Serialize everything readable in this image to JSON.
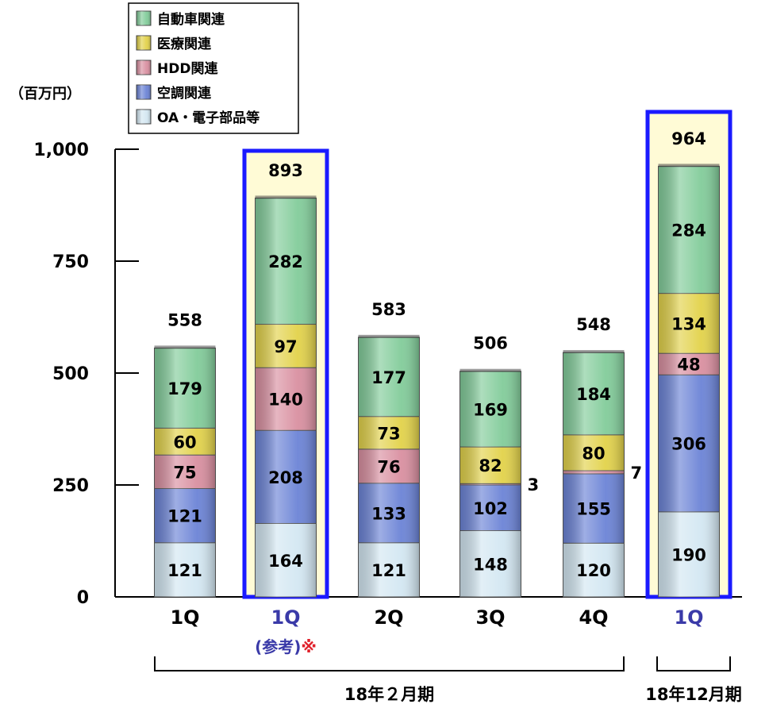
{
  "chart_data": {
    "type": "bar",
    "stacked": true,
    "unit_label": "（百万円）",
    "ylim": [
      0,
      1000
    ],
    "y_ticks": [
      {
        "value": 0,
        "label": "0"
      },
      {
        "value": 250,
        "label": "250"
      },
      {
        "value": 500,
        "label": "500"
      },
      {
        "value": 750,
        "label": "750"
      },
      {
        "value": 1000,
        "label": "1,000"
      }
    ],
    "categories": [
      "1Q",
      "1Q",
      "2Q",
      "3Q",
      "4Q",
      "1Q"
    ],
    "category_notes": [
      "",
      "(参考)",
      "",
      "",
      "",
      ""
    ],
    "note_mark": "※",
    "highlighted": [
      false,
      true,
      false,
      false,
      false,
      true
    ],
    "series": [
      {
        "name": "OA・電子部品等",
        "color": "#d3e7f2",
        "values": [
          121,
          164,
          121,
          148,
          120,
          190
        ],
        "labels": [
          "121",
          "164",
          "121",
          "148",
          "120",
          "190"
        ]
      },
      {
        "name": "空調関連",
        "color": "#6b83d6",
        "values": [
          121,
          208,
          133,
          102,
          155,
          306
        ],
        "labels": [
          "121",
          "208",
          "133",
          "102",
          "155",
          "306"
        ]
      },
      {
        "name": "HDD関連",
        "color": "#d98fa0",
        "values": [
          75,
          140,
          76,
          3,
          7,
          48
        ],
        "labels": [
          "75",
          "140",
          "76",
          "3",
          "7",
          "48"
        ]
      },
      {
        "name": "医療関連",
        "color": "#e2d24a",
        "values": [
          60,
          97,
          73,
          82,
          80,
          134
        ],
        "labels": [
          "60",
          "97",
          "73",
          "82",
          "80",
          "134"
        ]
      },
      {
        "name": "自動車関連",
        "color": "#82cc9a",
        "values": [
          179,
          282,
          177,
          169,
          184,
          284
        ],
        "labels": [
          "179",
          "282",
          "177",
          "169",
          "184",
          "284"
        ]
      }
    ],
    "totals": [
      558,
      893,
      583,
      506,
      548,
      964
    ],
    "total_labels": [
      "558",
      "893",
      "583",
      "506",
      "548",
      "964"
    ],
    "groups": [
      {
        "label": "18年２月期",
        "from": 0,
        "to": 4
      },
      {
        "label": "18年12月期",
        "from": 5,
        "to": 5
      }
    ],
    "legend_position": "top-left",
    "legend_order": [
      "自動車関連",
      "医療関連",
      "HDD関連",
      "空調関連",
      "OA・電子部品等"
    ]
  }
}
